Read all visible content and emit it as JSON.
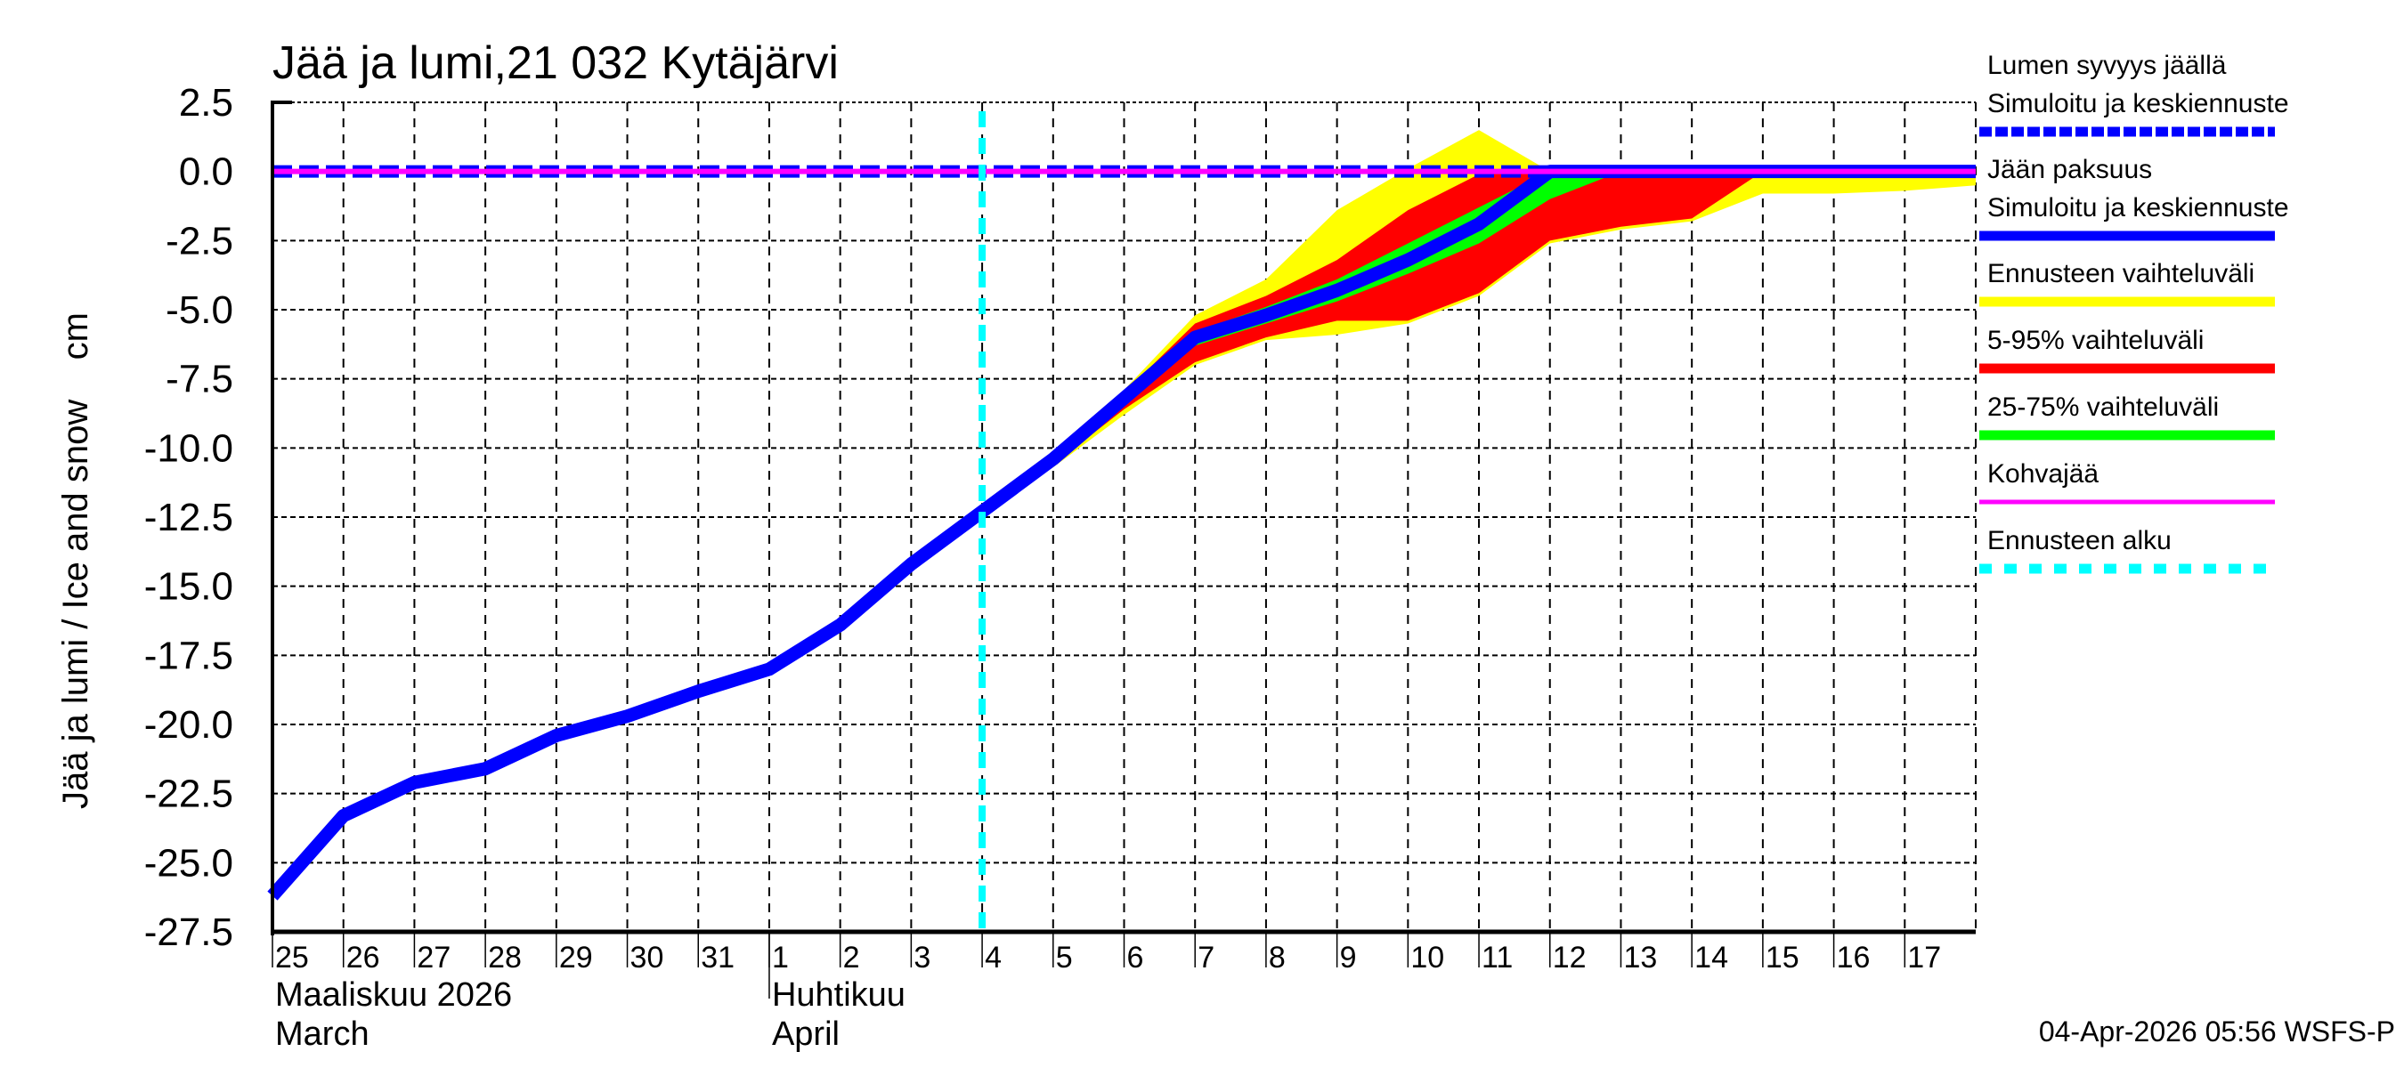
{
  "chart_data": {
    "type": "area",
    "title": "Jää ja lumi,21 032 Kytäjärvi",
    "ylabel": "Jää ja lumi / Ice and snow    cm",
    "ylim": [
      -27.5,
      2.5
    ],
    "yticks": [
      "2.5",
      "0.0",
      "-2.5",
      "-5.0",
      "-7.5",
      "-10.0",
      "-12.5",
      "-15.0",
      "-17.5",
      "-20.0",
      "-22.5",
      "-25.0",
      "-27.5"
    ],
    "ytick_values": [
      2.5,
      0,
      -2.5,
      -5,
      -7.5,
      -10,
      -12.5,
      -15,
      -17.5,
      -20,
      -22.5,
      -25,
      -27.5
    ],
    "x_day_labels": [
      "25",
      "26",
      "27",
      "28",
      "29",
      "30",
      "31",
      "1",
      "2",
      "3",
      "4",
      "5",
      "6",
      "7",
      "8",
      "9",
      "10",
      "11",
      "12",
      "13",
      "14",
      "15",
      "16",
      "17"
    ],
    "months": [
      {
        "fi": "Maaliskuu 2026",
        "en": "March",
        "start_index": 0
      },
      {
        "fi": "Huhtikuu",
        "en": "April",
        "start_index": 7
      }
    ],
    "grid": true,
    "forecast_start_index": 10,
    "series": [
      {
        "name": "Jään paksuus – Simuloitu ja keskiennuste",
        "color": "#0000ff",
        "x": [
          0,
          1,
          2,
          3,
          4,
          5,
          6,
          7,
          8,
          9,
          10,
          11,
          12,
          13,
          14,
          15,
          16,
          17,
          18,
          19,
          20,
          21,
          22,
          23,
          24
        ],
        "values": [
          -26.2,
          -23.3,
          -22.1,
          -21.6,
          -20.4,
          -19.7,
          -18.8,
          -18.0,
          -16.4,
          -14.2,
          -12.3,
          -10.4,
          -8.2,
          -6.0,
          -5.2,
          -4.3,
          -3.2,
          -1.9,
          0,
          0,
          0,
          0,
          0,
          0,
          0
        ]
      },
      {
        "name": "Lumen syvyys jäällä – Simuloitu ja keskiennuste",
        "color": "#0000ff",
        "x": [
          0,
          24
        ],
        "values": [
          0,
          0
        ]
      },
      {
        "name": "Kohvajää",
        "color": "#ff00ff",
        "x": [
          0,
          24
        ],
        "values": [
          0,
          0
        ]
      }
    ],
    "bands": [
      {
        "name": "Ennusteen vaihteluväli",
        "color": "#ffff00",
        "x": [
          10,
          11,
          12,
          13,
          14,
          15,
          16,
          17,
          18,
          19,
          20,
          21,
          22,
          23,
          24
        ],
        "upper": [
          -12.3,
          -10.2,
          -7.9,
          -5.2,
          -3.9,
          -1.4,
          0.1,
          1.5,
          0,
          0,
          0,
          0,
          0,
          0,
          0
        ],
        "lower": [
          -12.3,
          -10.7,
          -8.8,
          -7.0,
          -6.1,
          -5.9,
          -5.5,
          -4.5,
          -2.6,
          -2.1,
          -1.8,
          -0.8,
          -0.8,
          -0.7,
          -0.5
        ]
      },
      {
        "name": "5-95% vaihteluväli",
        "color": "#ff0000",
        "x": [
          10,
          11,
          12,
          13,
          14,
          15,
          16,
          17,
          18,
          19,
          20,
          21,
          22,
          23,
          24
        ],
        "upper": [
          -12.3,
          -10.3,
          -8.0,
          -5.5,
          -4.5,
          -3.2,
          -1.4,
          -0.1,
          0,
          0,
          0,
          0,
          0,
          0,
          0
        ],
        "lower": [
          -12.3,
          -10.6,
          -8.6,
          -6.9,
          -6.0,
          -5.4,
          -5.4,
          -4.4,
          -2.5,
          -2.0,
          -1.7,
          0,
          0,
          0,
          0
        ]
      },
      {
        "name": "25-75% vaihteluväli",
        "color": "#00ff00",
        "x": [
          10,
          11,
          12,
          13,
          14,
          15,
          16,
          17,
          18,
          19,
          20,
          21,
          22,
          23,
          24
        ],
        "upper": [
          -12.3,
          -10.35,
          -8.1,
          -5.8,
          -4.9,
          -3.9,
          -2.6,
          -1.3,
          0,
          0,
          0,
          0,
          0,
          0,
          0
        ],
        "lower": [
          -12.3,
          -10.5,
          -8.4,
          -6.3,
          -5.5,
          -4.7,
          -3.7,
          -2.6,
          -1.0,
          0,
          0,
          0,
          0,
          0,
          0
        ]
      }
    ],
    "legend_position": "right",
    "legend": [
      {
        "title": "Lumen syvyys jäällä",
        "label": "Simuloitu ja keskiennuste",
        "color": "#0000ff",
        "style": "dashed"
      },
      {
        "title": "Jään paksuus",
        "label": "Simuloitu ja keskiennuste",
        "color": "#0000ff",
        "style": "solid"
      },
      {
        "label": "Ennusteen vaihteluväli",
        "color": "#ffff00",
        "style": "solid"
      },
      {
        "label": "5-95% vaihteluväli",
        "color": "#ff0000",
        "style": "solid"
      },
      {
        "label": "25-75% vaihteluväli",
        "color": "#00ff00",
        "style": "solid"
      },
      {
        "label": "Kohvajää",
        "color": "#ff00ff",
        "style": "thin"
      },
      {
        "label": "Ennusteen alku",
        "color": "#00ffff",
        "style": "dotted"
      }
    ],
    "footer": "04-Apr-2026 05:56 WSFS-P"
  }
}
